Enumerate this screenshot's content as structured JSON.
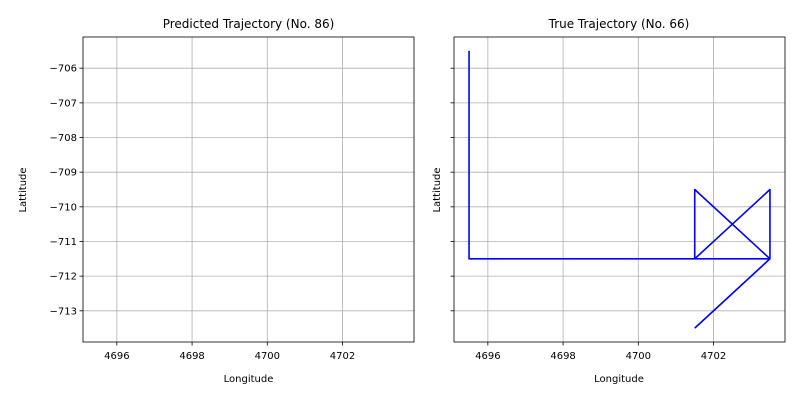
{
  "chart_data": [
    {
      "type": "line",
      "title": "Predicted Trajectory (No. 86)",
      "xlabel": "Longitude",
      "ylabel": "Lattitude",
      "xlim": [
        4695.1,
        4703.9
      ],
      "ylim": [
        -713.9,
        -705.1
      ],
      "xticks": [
        4696,
        4698,
        4700,
        4702
      ],
      "xtick_labels": [
        "4696",
        "4698",
        "4700",
        "4702"
      ],
      "yticks": [
        -706,
        -707,
        -708,
        -709,
        -710,
        -711,
        -712,
        -713
      ],
      "ytick_labels": [
        "−706",
        "−707",
        "−708",
        "−709",
        "−710",
        "−711",
        "−712",
        "−713"
      ],
      "show_ytick_labels": true,
      "grid": true,
      "series": []
    },
    {
      "type": "line",
      "title": "True Trajectory (No. 66)",
      "xlabel": "Longitude",
      "ylabel": "Lattitude",
      "xlim": [
        4695.1,
        4703.9
      ],
      "ylim": [
        -713.9,
        -705.1
      ],
      "xticks": [
        4696,
        4698,
        4700,
        4702
      ],
      "xtick_labels": [
        "4696",
        "4698",
        "4700",
        "4702"
      ],
      "yticks": [
        -706,
        -707,
        -708,
        -709,
        -710,
        -711,
        -712,
        -713
      ],
      "ytick_labels": [
        "−706",
        "−707",
        "−708",
        "−709",
        "−710",
        "−711",
        "−712",
        "−713"
      ],
      "show_ytick_labels": false,
      "grid": true,
      "series": [
        {
          "color": "#0000ff",
          "points": [
            [
              4695.5,
              -705.5
            ],
            [
              4695.5,
              -711.5
            ],
            [
              4703.5,
              -711.5
            ],
            [
              4701.5,
              -711.5
            ],
            [
              4701.5,
              -709.5
            ],
            [
              4703.5,
              -711.5
            ],
            [
              4703.5,
              -709.5
            ],
            [
              4701.5,
              -711.5
            ],
            [
              4703.5,
              -711.5
            ],
            [
              4701.5,
              -713.5
            ]
          ]
        }
      ]
    }
  ],
  "colors": {
    "grid": "#b0b0b0",
    "axes": "#000000",
    "line": "#0000ff"
  }
}
